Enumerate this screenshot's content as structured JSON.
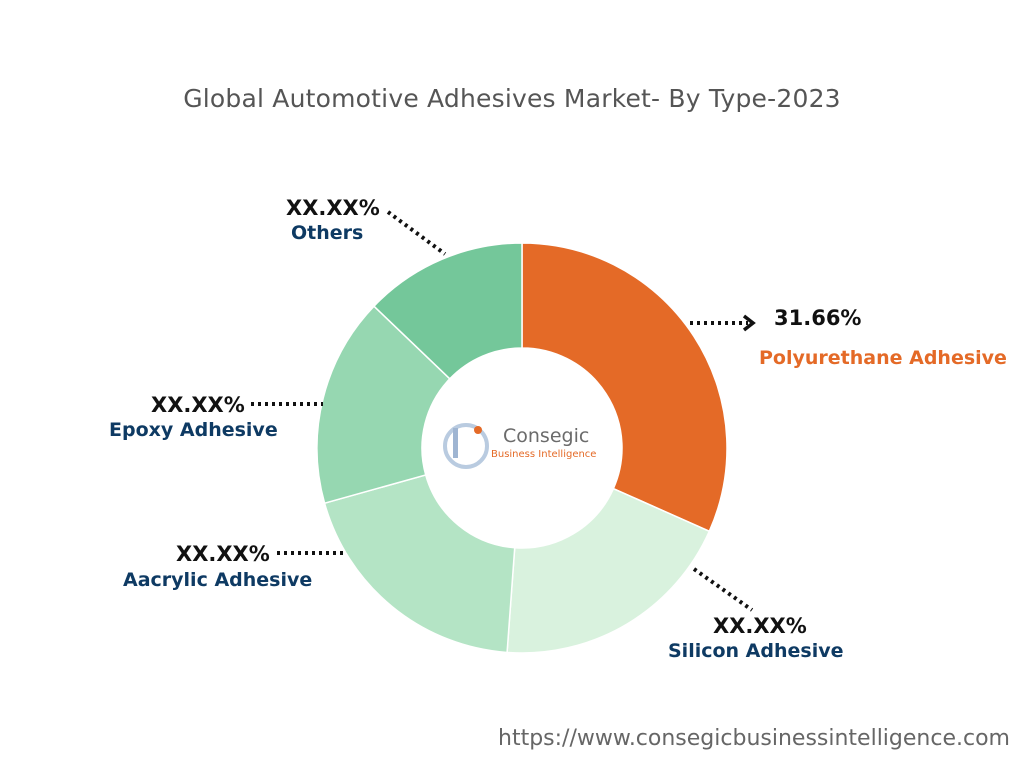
{
  "title": "Global Automotive Adhesives Market- By Type-2023",
  "source_url": "https://www.consegicbusinessintelligence.com",
  "logo": {
    "name": "Consegic",
    "tagline": "Business Intelligence",
    "icon": "cb-logo-icon"
  },
  "chart_data": {
    "type": "pie",
    "variant": "donut",
    "title": "Global Automotive Adhesives Market- By Type-2023",
    "slices": [
      {
        "label": "Polyurethane Adhesive",
        "value_label": "31.66%",
        "value": 31.66,
        "color": "#e46a27"
      },
      {
        "label": "Silicon Adhesive",
        "value_label": "XX.XX%",
        "value": 19.5,
        "color": "#d9f2de"
      },
      {
        "label": "Aacrylic Adhesive",
        "value_label": "XX.XX%",
        "value": 19.5,
        "color": "#b4e4c5"
      },
      {
        "label": "Epoxy Adhesive",
        "value_label": "XX.XX%",
        "value": 16.5,
        "color": "#96d7b1"
      },
      {
        "label": "Others",
        "value_label": "XX.XX%",
        "value": 12.84,
        "color": "#74c79a"
      }
    ]
  }
}
